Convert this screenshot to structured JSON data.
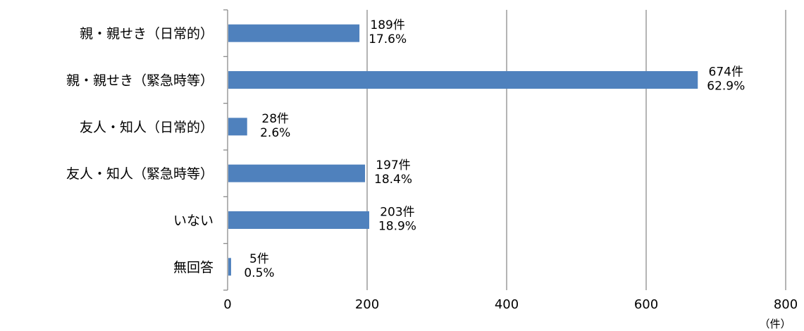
{
  "chart_data": {
    "type": "bar",
    "orientation": "horizontal",
    "categories": [
      "親・親せき（日常的）",
      "親・親せき（緊急時等）",
      "友人・知人（日常的）",
      "友人・知人（緊急時等）",
      "いない",
      "無回答"
    ],
    "values": [
      189,
      674,
      28,
      197,
      203,
      5
    ],
    "data_labels": [
      [
        "189件",
        "17.6%"
      ],
      [
        "674件",
        "62.9%"
      ],
      [
        "28件",
        "2.6%"
      ],
      [
        "197件",
        "18.4%"
      ],
      [
        "203件",
        "18.9%"
      ],
      [
        "5件",
        "0.5%"
      ]
    ],
    "x_ticks": [
      "0",
      "200",
      "400",
      "600",
      "800"
    ],
    "xlim": [
      0,
      800
    ],
    "x_unit": "（件）",
    "bar_color": "#4f81bd",
    "grid": true,
    "legend": "none"
  }
}
